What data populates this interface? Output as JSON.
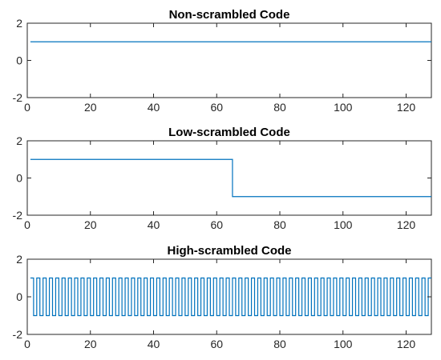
{
  "colors": {
    "series": "#0072bd",
    "axes": "#262626",
    "background": "#ffffff"
  },
  "chart_data": [
    {
      "type": "line",
      "title": "Non-scrambled Code",
      "xlabel": "",
      "ylabel": "",
      "xlim": [
        0,
        128
      ],
      "ylim": [
        -2,
        2
      ],
      "xticks": [
        0,
        20,
        40,
        60,
        80,
        100,
        120
      ],
      "yticks": [
        -2,
        0,
        2
      ],
      "grid": false,
      "series": [
        {
          "style": "stairs",
          "x": [
            1,
            128
          ],
          "y": [
            1,
            1
          ]
        }
      ]
    },
    {
      "type": "line",
      "title": "Low-scrambled Code",
      "xlabel": "",
      "ylabel": "",
      "xlim": [
        0,
        128
      ],
      "ylim": [
        -2,
        2
      ],
      "xticks": [
        0,
        20,
        40,
        60,
        80,
        100,
        120
      ],
      "yticks": [
        -2,
        0,
        2
      ],
      "grid": false,
      "series": [
        {
          "style": "stairs",
          "x": [
            1,
            65,
            128
          ],
          "y": [
            1,
            -1,
            -1
          ]
        }
      ]
    },
    {
      "type": "line",
      "title": "High-scrambled Code",
      "xlabel": "",
      "ylabel": "",
      "xlim": [
        0,
        128
      ],
      "ylim": [
        -2,
        2
      ],
      "xticks": [
        0,
        20,
        40,
        60,
        80,
        100,
        120
      ],
      "yticks": [
        -2,
        0,
        2
      ],
      "grid": false,
      "series": [
        {
          "style": "alternating",
          "x_start": 1,
          "x_end": 128,
          "period": 2,
          "values": [
            1,
            -1
          ]
        }
      ]
    }
  ]
}
